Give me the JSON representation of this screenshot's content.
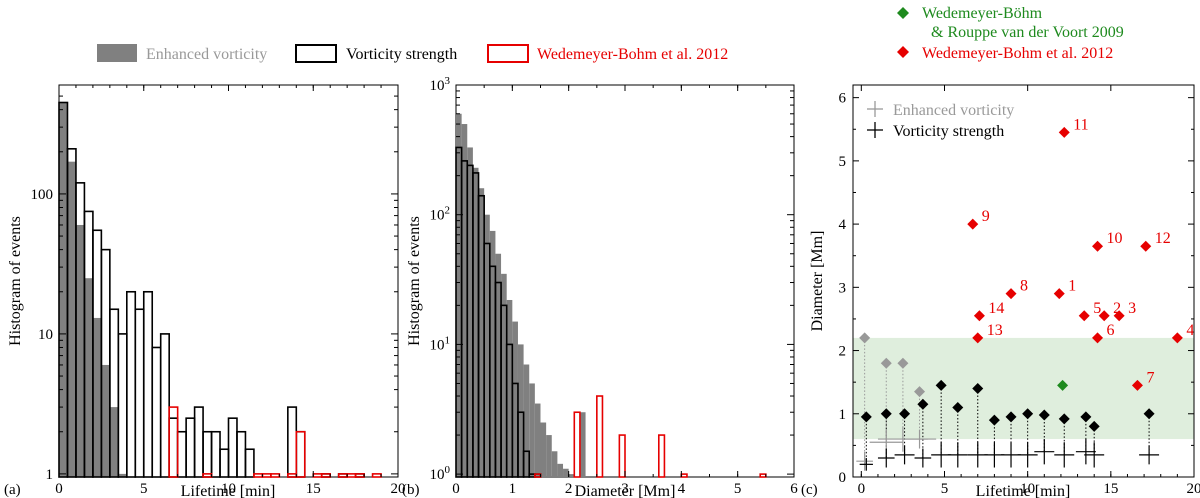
{
  "legend_top": {
    "items": [
      {
        "label": "Enhanced vorticity",
        "style": "filled-gray",
        "color": "#808080",
        "text_color": "#999999"
      },
      {
        "label": "Vorticity strength",
        "style": "outline-black",
        "color": "#000000",
        "text_color": "#000000"
      },
      {
        "label": "Wedemeyer-Bohm et al. 2012",
        "style": "outline-red",
        "color": "#e60000",
        "text_color": "#e60000"
      }
    ]
  },
  "legend_c": {
    "green_label_line1": "Wedemeyer-Böhm",
    "green_label_line2": "& Rouppe van der Voort 2009",
    "red_label": "Wedemeyer-Bohm et al. 2012",
    "gray_cross_label": "Enhanced vorticity",
    "black_cross_label": "Vorticity strength"
  },
  "colors": {
    "gray": "#808080",
    "light_gray": "#999999",
    "red": "#e60000",
    "green": "#1e8a1e",
    "band": "#dfeedd"
  },
  "chart_data": [
    {
      "type": "bar",
      "panel_label": "(a)",
      "xlabel": "Lifetime [min]",
      "ylabel": "Histogram of events",
      "xlim": [
        0,
        20
      ],
      "ylim": [
        0.95,
        600
      ],
      "yscale": "log",
      "xticks": [
        "0",
        "5",
        "10",
        "15",
        "20"
      ],
      "yticks": [
        "1",
        "10",
        "100"
      ],
      "bin_width": 0.5,
      "series": [
        {
          "name": "Enhanced vorticity",
          "style": "filled",
          "x": [
            0,
            0.5,
            1.0,
            1.5,
            2.0,
            2.5,
            3.0,
            3.5
          ],
          "values": [
            450,
            170,
            60,
            25,
            13,
            6,
            3,
            1
          ]
        },
        {
          "name": "Vorticity strength",
          "style": "outline-black",
          "x": [
            0,
            0.5,
            1.0,
            1.5,
            2.0,
            2.5,
            3.0,
            3.5,
            4.0,
            4.5,
            5.0,
            5.5,
            6.0,
            6.5,
            7.0,
            7.5,
            8.0,
            8.5,
            9.0,
            9.5,
            10.0,
            10.5,
            11.0,
            13.5,
            14.0,
            15.5,
            16.5,
            17.5
          ],
          "values": [
            450,
            210,
            120,
            75,
            55,
            40,
            15,
            10,
            20,
            15,
            20,
            8,
            10,
            2.5,
            2,
            2.5,
            3,
            2,
            2,
            1.5,
            2.5,
            2,
            1.5,
            3,
            2,
            1,
            1,
            1
          ]
        },
        {
          "name": "Wedemeyer-Bohm et al. 2012",
          "style": "outline-red",
          "x": [
            6.5,
            8.5,
            11.5,
            12.0,
            12.5,
            13.5,
            14.0,
            15.0,
            15.5,
            16.5,
            17.0,
            17.5,
            18.5
          ],
          "values": [
            3,
            1,
            1,
            1,
            1,
            1,
            2,
            1,
            1,
            1,
            1,
            1,
            1
          ]
        }
      ]
    },
    {
      "type": "bar",
      "panel_label": "(b)",
      "xlabel": "Diameter [Mm]",
      "ylabel": "Histogram of events",
      "xlim": [
        0,
        6
      ],
      "ylim": [
        0.95,
        1000
      ],
      "yscale": "log",
      "xticks": [
        "0",
        "1",
        "2",
        "3",
        "4",
        "5",
        "6"
      ],
      "yticks": [
        "10^0",
        "10^1",
        "10^2",
        "10^3"
      ],
      "bin_width": 0.1,
      "series": [
        {
          "name": "Enhanced vorticity",
          "style": "filled",
          "x": [
            0.0,
            0.1,
            0.2,
            0.3,
            0.4,
            0.5,
            0.6,
            0.7,
            0.8,
            0.9,
            1.0,
            1.1,
            1.2,
            1.3,
            1.4,
            1.5,
            1.6,
            1.7,
            1.8,
            1.9,
            2.0,
            2.2
          ],
          "values": [
            600,
            500,
            330,
            230,
            160,
            100,
            75,
            50,
            35,
            22,
            15,
            10,
            7,
            5,
            3.5,
            2.5,
            2,
            1.5,
            1.2,
            1.1,
            1,
            3
          ]
        },
        {
          "name": "Vorticity strength",
          "style": "outline-black",
          "x": [
            0.0,
            0.1,
            0.2,
            0.3,
            0.4,
            0.5,
            0.6,
            0.7,
            0.8,
            0.9,
            1.0,
            1.1,
            1.2,
            1.3,
            1.4
          ],
          "values": [
            330,
            260,
            240,
            210,
            140,
            60,
            40,
            30,
            20,
            10,
            5,
            3,
            1.5,
            1,
            1
          ]
        },
        {
          "name": "Wedemeyer-Bohm et al. 2012",
          "style": "outline-red",
          "x": [
            1.4,
            2.1,
            2.5,
            2.9,
            3.6,
            4.0,
            5.4
          ],
          "values": [
            1,
            3,
            4,
            2,
            2,
            1,
            1
          ]
        }
      ]
    },
    {
      "type": "scatter",
      "panel_label": "(c)",
      "xlabel": "Lifetime [min]",
      "ylabel": "Diameter [Mm]",
      "xlim": [
        -0.5,
        20
      ],
      "ylim": [
        0,
        6.2
      ],
      "xticks": [
        "0",
        "5",
        "10",
        "15",
        "20"
      ],
      "yticks": [
        "0",
        "1",
        "2",
        "3",
        "4",
        "5",
        "6"
      ],
      "band": {
        "y_from": 0.6,
        "y_to": 2.2
      },
      "series": [
        {
          "name": "Wedemeyer-Bohm et al. 2012",
          "marker": "diamond-red",
          "points": [
            {
              "x": 11.9,
              "y": 2.9,
              "label": "1"
            },
            {
              "x": 14.6,
              "y": 2.55,
              "label": "2"
            },
            {
              "x": 15.5,
              "y": 2.55,
              "label": "3"
            },
            {
              "x": 19.0,
              "y": 2.2,
              "label": "4"
            },
            {
              "x": 13.4,
              "y": 2.55,
              "label": "5"
            },
            {
              "x": 14.2,
              "y": 2.2,
              "label": "6"
            },
            {
              "x": 16.6,
              "y": 1.45,
              "label": "7"
            },
            {
              "x": 9.0,
              "y": 2.9,
              "label": "8"
            },
            {
              "x": 6.7,
              "y": 4.0,
              "label": "9"
            },
            {
              "x": 14.2,
              "y": 3.65,
              "label": "10"
            },
            {
              "x": 12.2,
              "y": 5.45,
              "label": "11"
            },
            {
              "x": 17.1,
              "y": 3.65,
              "label": "12"
            },
            {
              "x": 7.0,
              "y": 2.2,
              "label": "13"
            },
            {
              "x": 7.1,
              "y": 2.55,
              "label": "14"
            }
          ]
        },
        {
          "name": "Wedemeyer-Böhm & Rouppe van der Voort 2009",
          "marker": "diamond-green",
          "points": [
            {
              "x": 12.1,
              "y": 1.45
            }
          ]
        },
        {
          "name": "Enhanced vorticity (max)",
          "marker": "diamond-gray",
          "points": [
            {
              "x": 0.2,
              "y": 2.2
            },
            {
              "x": 1.5,
              "y": 1.8
            },
            {
              "x": 2.5,
              "y": 1.8
            },
            {
              "x": 3.5,
              "y": 1.35
            }
          ]
        },
        {
          "name": "Vorticity strength (max)",
          "marker": "diamond-black",
          "points": [
            {
              "x": 0.3,
              "y": 0.95
            },
            {
              "x": 1.5,
              "y": 1.0
            },
            {
              "x": 2.6,
              "y": 1.0
            },
            {
              "x": 3.7,
              "y": 1.15
            },
            {
              "x": 4.8,
              "y": 1.45
            },
            {
              "x": 5.8,
              "y": 1.1
            },
            {
              "x": 7.0,
              "y": 1.4
            },
            {
              "x": 8.0,
              "y": 0.9
            },
            {
              "x": 9.0,
              "y": 0.95
            },
            {
              "x": 10.0,
              "y": 1.0
            },
            {
              "x": 11.0,
              "y": 0.98
            },
            {
              "x": 12.2,
              "y": 0.92
            },
            {
              "x": 13.5,
              "y": 0.95
            },
            {
              "x": 14.0,
              "y": 0.8
            },
            {
              "x": 17.3,
              "y": 1.0
            }
          ]
        },
        {
          "name": "Enhanced vorticity",
          "marker": "cross-gray",
          "points": [
            {
              "x": 0.2,
              "y": 0.25,
              "xerr": 0.5,
              "yerr": 0.15
            },
            {
              "x": 1.5,
              "y": 0.55,
              "xerr": 1.0,
              "yerr": 0.2
            },
            {
              "x": 2.5,
              "y": 0.6,
              "xerr": 1.5,
              "yerr": 0.2
            },
            {
              "x": 3.5,
              "y": 0.6,
              "xerr": 1.0,
              "yerr": 0.15
            }
          ]
        },
        {
          "name": "Vorticity strength",
          "marker": "cross-black",
          "points": [
            {
              "x": 0.3,
              "y": 0.2,
              "xerr": 0.4,
              "yerr": 0.1
            },
            {
              "x": 1.5,
              "y": 0.3,
              "xerr": 0.5,
              "yerr": 0.15
            },
            {
              "x": 2.6,
              "y": 0.35,
              "xerr": 0.6,
              "yerr": 0.15
            },
            {
              "x": 3.7,
              "y": 0.3,
              "xerr": 0.5,
              "yerr": 0.15
            },
            {
              "x": 4.8,
              "y": 0.35,
              "xerr": 0.6,
              "yerr": 0.2
            },
            {
              "x": 5.8,
              "y": 0.35,
              "xerr": 0.6,
              "yerr": 0.2
            },
            {
              "x": 7.0,
              "y": 0.35,
              "xerr": 0.6,
              "yerr": 0.2
            },
            {
              "x": 8.0,
              "y": 0.35,
              "xerr": 0.6,
              "yerr": 0.2
            },
            {
              "x": 9.0,
              "y": 0.35,
              "xerr": 0.6,
              "yerr": 0.2
            },
            {
              "x": 10.0,
              "y": 0.35,
              "xerr": 0.6,
              "yerr": 0.2
            },
            {
              "x": 11.0,
              "y": 0.4,
              "xerr": 0.6,
              "yerr": 0.2
            },
            {
              "x": 12.2,
              "y": 0.35,
              "xerr": 0.6,
              "yerr": 0.2
            },
            {
              "x": 13.5,
              "y": 0.4,
              "xerr": 0.6,
              "yerr": 0.2
            },
            {
              "x": 14.0,
              "y": 0.35,
              "xerr": 0.6,
              "yerr": 0.2
            },
            {
              "x": 17.3,
              "y": 0.35,
              "xerr": 0.6,
              "yerr": 0.15
            }
          ]
        }
      ]
    }
  ]
}
